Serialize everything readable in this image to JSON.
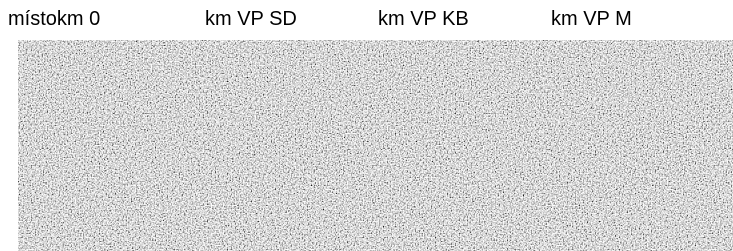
{
  "header": {
    "columns": [
      "místokm 0",
      "km VP SD",
      "km VP KB",
      "km VP M"
    ]
  }
}
